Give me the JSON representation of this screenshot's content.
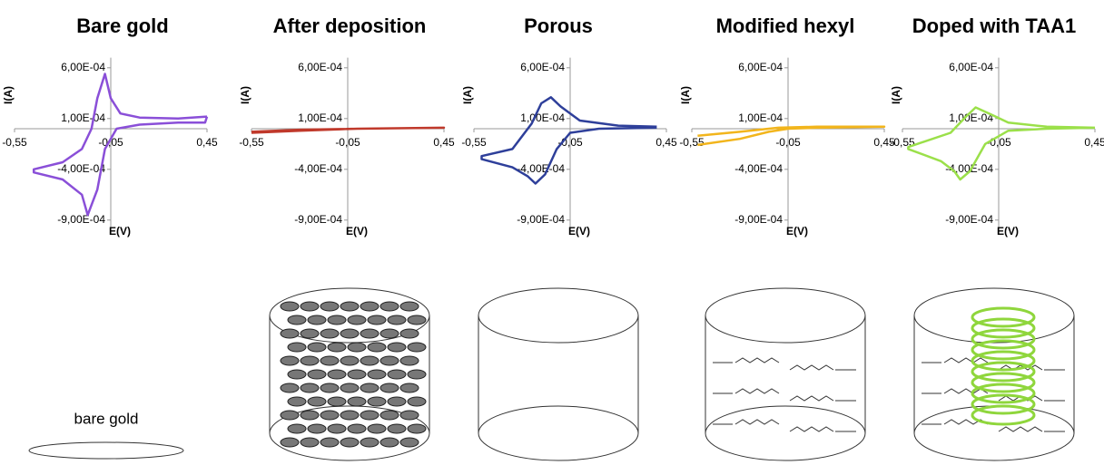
{
  "chart_data": [
    {
      "type": "line",
      "title": "Bare gold",
      "xlabel": "E(V)",
      "ylabel": "I(A)",
      "color": "#8a4fd8",
      "x": [
        0.45,
        0.3,
        0.1,
        0.0,
        -0.05,
        -0.08,
        -0.12,
        -0.15,
        -0.2,
        -0.3,
        -0.45,
        -0.45,
        -0.3,
        -0.2,
        -0.17,
        -0.12,
        -0.08,
        -0.02,
        0.1,
        0.3,
        0.44,
        0.45
      ],
      "values": [
        0.00012,
        0.0001,
        0.00011,
        0.00015,
        0.0003,
        0.00054,
        0.0003,
        0.0,
        -0.0002,
        -0.00033,
        -0.0004,
        -0.00043,
        -0.0005,
        -0.00065,
        -0.00085,
        -0.0006,
        -0.0002,
        0.0,
        4e-05,
        6e-05,
        6e-05,
        0.00012
      ],
      "xlim": [
        -0.55,
        0.45
      ],
      "ylim": [
        -0.001,
        0.0007
      ],
      "xticks": [
        {
          "value": -0.55,
          "label": "-0,55"
        },
        {
          "value": -0.05,
          "label": "-0,05"
        },
        {
          "value": 0.45,
          "label": "0,45"
        }
      ],
      "yticks": [
        {
          "value": 0.0006,
          "label": "6,00E-04"
        },
        {
          "value": 0.0001,
          "label": "1,00E-04"
        },
        {
          "value": -0.0004,
          "label": "-4,00E-04"
        },
        {
          "value": -0.0009,
          "label": "-9,00E-04"
        }
      ]
    },
    {
      "type": "line",
      "title": "After deposition",
      "xlabel": "E(V)",
      "ylabel": "I(A)",
      "color": "#c0392b",
      "x": [
        -0.55,
        -0.3,
        0.0,
        0.45,
        0.0,
        -0.3,
        -0.55
      ],
      "values": [
        -3e-05,
        -1e-05,
        0.0,
        1e-05,
        0.0,
        -2e-05,
        -4e-05
      ],
      "xlim": [
        -0.55,
        0.45
      ],
      "ylim": [
        -0.001,
        0.0007
      ],
      "xticks": [
        {
          "value": -0.55,
          "label": "-0,55"
        },
        {
          "value": -0.05,
          "label": "-0,05"
        },
        {
          "value": 0.45,
          "label": "0,45"
        }
      ],
      "yticks": [
        {
          "value": 0.0006,
          "label": "6,00E-04"
        },
        {
          "value": 0.0001,
          "label": "1,00E-04"
        },
        {
          "value": -0.0004,
          "label": "-4,00E-04"
        },
        {
          "value": -0.0009,
          "label": "-9,00E-04"
        }
      ]
    },
    {
      "type": "line",
      "title": "Porous",
      "xlabel": "E(V)",
      "ylabel": "I(A)",
      "color": "#2e3f9a",
      "x": [
        0.4,
        0.2,
        0.0,
        -0.1,
        -0.15,
        -0.2,
        -0.25,
        -0.35,
        -0.51,
        -0.51,
        -0.35,
        -0.27,
        -0.23,
        -0.18,
        -0.12,
        -0.05,
        0.1,
        0.4
      ],
      "values": [
        2e-05,
        3e-05,
        8e-05,
        0.00022,
        0.00031,
        0.00025,
        5e-05,
        -0.0002,
        -0.00027,
        -0.0003,
        -0.00038,
        -0.00047,
        -0.00054,
        -0.00045,
        -0.0002,
        -4e-05,
        0.0,
        1e-05
      ],
      "xlim": [
        -0.55,
        0.45
      ],
      "ylim": [
        -0.001,
        0.0007
      ],
      "xticks": [
        {
          "value": -0.55,
          "label": "-0,55"
        },
        {
          "value": -0.05,
          "label": "-0,05"
        },
        {
          "value": 0.45,
          "label": "0,45"
        }
      ],
      "yticks": [
        {
          "value": 0.0006,
          "label": "6,00E-04"
        },
        {
          "value": 0.0001,
          "label": "1,00E-04"
        },
        {
          "value": -0.0004,
          "label": "-4,00E-04"
        },
        {
          "value": -0.0009,
          "label": "-9,00E-04"
        }
      ]
    },
    {
      "type": "line",
      "title": "Modified hexyl",
      "xlabel": "E(V)",
      "ylabel": "I(A)",
      "color": "#f2b51c",
      "x": [
        -0.52,
        -0.3,
        -0.15,
        -0.05,
        0.1,
        0.45,
        0.1,
        -0.1,
        -0.3,
        -0.52
      ],
      "values": [
        -0.00016,
        -0.0001,
        -3e-05,
        0.0,
        1e-05,
        2e-05,
        2e-05,
        1e-05,
        -3e-05,
        -7e-05
      ],
      "xlim": [
        -0.55,
        0.45
      ],
      "ylim": [
        -0.001,
        0.0007
      ],
      "xticks": [
        {
          "value": -0.55,
          "label": "-0,55"
        },
        {
          "value": -0.05,
          "label": "-0,05"
        },
        {
          "value": 0.45,
          "label": "0,45"
        }
      ],
      "yticks": [
        {
          "value": 0.0006,
          "label": "6,00E-04"
        },
        {
          "value": 0.0001,
          "label": "1,00E-04"
        },
        {
          "value": -0.0004,
          "label": "-4,00E-04"
        },
        {
          "value": -0.0009,
          "label": "-9,00E-04"
        }
      ]
    },
    {
      "type": "line",
      "title": "Doped with TAA1",
      "xlabel": "E(V)",
      "ylabel": "I(A)",
      "color": "#9be04a",
      "x": [
        0.45,
        0.2,
        0.0,
        -0.1,
        -0.17,
        -0.22,
        -0.3,
        -0.52,
        -0.52,
        -0.35,
        -0.28,
        -0.25,
        -0.2,
        -0.12,
        0.0,
        0.2,
        0.45
      ],
      "values": [
        1e-05,
        2e-05,
        6e-05,
        0.00015,
        0.00021,
        0.00012,
        -4e-05,
        -0.00018,
        -0.0002,
        -0.00032,
        -0.00042,
        -0.0005,
        -0.00042,
        -0.00015,
        -2e-05,
        0.0,
        1e-05
      ],
      "xlim": [
        -0.55,
        0.45
      ],
      "ylim": [
        -0.001,
        0.0007
      ],
      "xticks": [
        {
          "value": -0.55,
          "label": "-0,55"
        },
        {
          "value": -0.05,
          "label": "-0,05"
        },
        {
          "value": 0.45,
          "label": "0,45"
        }
      ],
      "yticks": [
        {
          "value": 0.0006,
          "label": "6,00E-04"
        },
        {
          "value": 0.0001,
          "label": "1,00E-04"
        },
        {
          "value": -0.0004,
          "label": "-4,00E-04"
        },
        {
          "value": -0.0009,
          "label": "-9,00E-04"
        }
      ]
    }
  ],
  "diagram_label": "bare gold"
}
